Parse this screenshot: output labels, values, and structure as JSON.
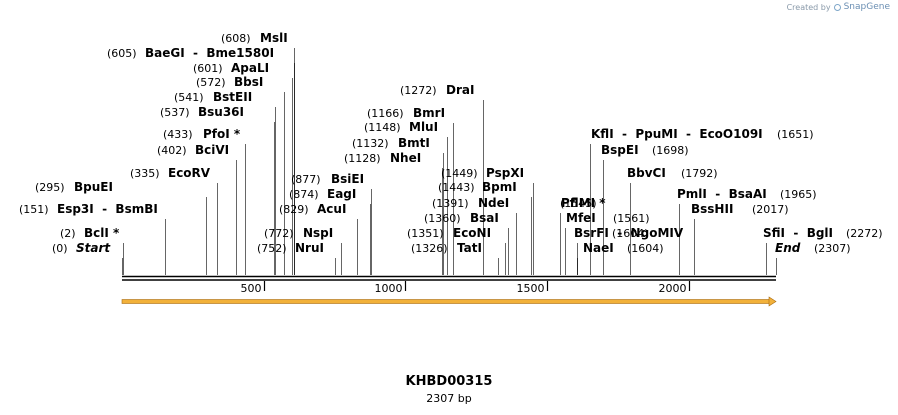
{
  "credit": {
    "prefix": "Created by",
    "brand": "SnapGene"
  },
  "sequence": {
    "name": "KHBD00315",
    "length_label": "2307 bp",
    "length": 2307
  },
  "ruler": {
    "ticks": [
      "500",
      "1000",
      "1500",
      "2000"
    ]
  },
  "colors": {
    "feature": "#f2b13a",
    "feature_stroke": "#a86a10",
    "backbone": "#000000",
    "leader": "#000000"
  },
  "sites": [
    {
      "name": "Start",
      "pos": "(0)",
      "italic": true
    },
    {
      "name": "BclI *",
      "pos": "(2)"
    },
    {
      "name": "Esp3I",
      "pos": "(151)",
      "dash": "BsmBI"
    },
    {
      "name": "BpuEI",
      "pos": "(295)"
    },
    {
      "name": "EcoRV",
      "pos": "(335)"
    },
    {
      "name": "BciVI",
      "pos": "(402)"
    },
    {
      "name": "PfoI *",
      "pos": "(433)"
    },
    {
      "name": "Bsu36I",
      "pos": "(537)"
    },
    {
      "name": "BstEII",
      "pos": "(541)"
    },
    {
      "name": "BbsI",
      "pos": "(572)"
    },
    {
      "name": "ApaLI",
      "pos": "(601)"
    },
    {
      "name": "BaeGI",
      "pos": "(605)",
      "dash": "Bme1580I"
    },
    {
      "name": "MslI",
      "pos": "(608)"
    },
    {
      "name": "NruI",
      "pos": "(752)"
    },
    {
      "name": "NspI",
      "pos": "(772)"
    },
    {
      "name": "AcuI",
      "pos": "(829)"
    },
    {
      "name": "EagI",
      "pos": "(874)"
    },
    {
      "name": "BsiEI",
      "pos": "(877)"
    },
    {
      "name": "NheI",
      "pos": "(1128)"
    },
    {
      "name": "BmtI",
      "pos": "(1132)"
    },
    {
      "name": "MluI",
      "pos": "(1148)"
    },
    {
      "name": "BmrI",
      "pos": "(1166)"
    },
    {
      "name": "DraI",
      "pos": "(1272)"
    },
    {
      "name": "TatI",
      "pos": "(1326)"
    },
    {
      "name": "EcoNI",
      "pos": "(1351)"
    },
    {
      "name": "BsaI",
      "pos": "(1360)"
    },
    {
      "name": "NdeI",
      "pos": "(1391)"
    },
    {
      "name": "BpmI",
      "pos": "(1443)"
    },
    {
      "name": "PspXI",
      "pos": "(1449)"
    },
    {
      "name": "PflMI *",
      "pos": "(1545)"
    },
    {
      "name": "MfeI",
      "pos": "(1561)"
    },
    {
      "name": "BsrFI",
      "pos": "(1604)",
      "dash": "NgoMIV"
    },
    {
      "name": "NaeI",
      "pos": "(1604)"
    },
    {
      "name": "KflI",
      "pos": "(1651)",
      "dash": "PpuMI",
      "dash2": "EcoO109I"
    },
    {
      "name": "BspEI",
      "pos": "(1698)"
    },
    {
      "name": "BbvCI",
      "pos": "(1792)"
    },
    {
      "name": "PmlI",
      "pos": "(1965)",
      "dash": "BsaAI"
    },
    {
      "name": "BssHII",
      "pos": "(2017)"
    },
    {
      "name": "SfiI",
      "pos": "(2272)",
      "dash": "BglI"
    },
    {
      "name": "End",
      "pos": "(2307)",
      "italic": true
    }
  ]
}
